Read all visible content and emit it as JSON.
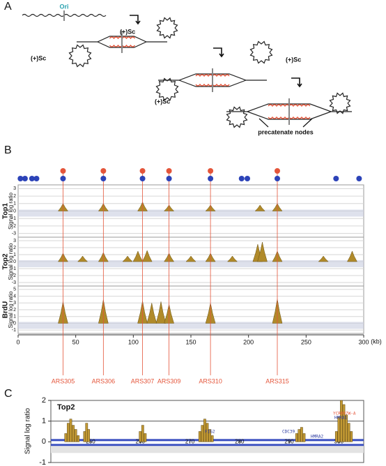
{
  "panel_a": {
    "label": "A",
    "ori": "Ori",
    "sc_labels": [
      "(+)Sc",
      "(+)Sc",
      "(+)Sc",
      "(+)Sc"
    ],
    "nodes_label": "precatenate nodes"
  },
  "panel_b": {
    "label": "B",
    "ylabel": "Signal log ratio",
    "xunit": "(kb)",
    "xlim": [
      0,
      300
    ],
    "xticks": [
      0,
      50,
      100,
      150,
      200,
      250,
      300
    ],
    "blue_dots": [
      2,
      6,
      12,
      16,
      39,
      74,
      108,
      131,
      167,
      194,
      199,
      225,
      276,
      296
    ],
    "ars": {
      "names": [
        "ARS305",
        "ARS306",
        "ARS307",
        "ARS309",
        "ARS310",
        "ARS315"
      ],
      "x": [
        39,
        74,
        108,
        131,
        167,
        225
      ]
    },
    "tracks": [
      {
        "name": "Top1",
        "ylim": [
          -3.5,
          3.5
        ],
        "yticks": [
          -3,
          -2,
          -1,
          0,
          1,
          2,
          3
        ],
        "x": [
          39,
          74,
          108,
          131,
          167,
          210,
          225
        ],
        "values": [
          1,
          1,
          1.2,
          0.8,
          0.8,
          0.8,
          1
        ]
      },
      {
        "name": "Top2",
        "ylim": [
          -3.5,
          3.5
        ],
        "yticks": [
          -3,
          -2,
          -1,
          0,
          1,
          2,
          3
        ],
        "x": [
          39,
          56,
          74,
          95,
          104,
          112,
          131,
          150,
          167,
          186,
          208,
          212,
          225,
          265,
          290
        ],
        "values": [
          1.2,
          0.8,
          1.3,
          0.8,
          1.5,
          1.6,
          1.2,
          0.8,
          1.2,
          0.8,
          2.5,
          2.8,
          1.5,
          0.8,
          1.5
        ]
      },
      {
        "name": "BrdU",
        "ylim": [
          -1.5,
          5.5
        ],
        "yticks": [
          -1,
          0,
          1,
          2,
          3,
          4,
          5
        ],
        "x": [
          39,
          74,
          108,
          116,
          124,
          131,
          167,
          225
        ],
        "values": [
          3.2,
          3.5,
          3.3,
          3,
          3.2,
          2.8,
          3,
          3.6
        ]
      }
    ]
  },
  "panel_c": {
    "label": "C",
    "title": "Top2",
    "ylabel": "Signal log ratio",
    "xlim": [
      242,
      305
    ],
    "xticks": [
      250,
      260,
      270,
      280,
      290,
      300
    ],
    "ylim": [
      -1,
      2
    ],
    "yticks": [
      -1,
      0,
      1,
      2
    ],
    "genes": [
      "FIG2",
      "CDC39",
      "HMRA1",
      "YCR097W-A",
      "HMRA2"
    ],
    "x": [
      245,
      245.5,
      246,
      246.5,
      247,
      247.5,
      248.8,
      249.2,
      249.6,
      260,
      260.5,
      261,
      272,
      272.5,
      273,
      273.5,
      274,
      274.5,
      291.5,
      292,
      292.5,
      293,
      299.5,
      300,
      300.5,
      301,
      301.5,
      302,
      302.5
    ],
    "values": [
      0.4,
      0.9,
      1.1,
      0.8,
      0.6,
      0.3,
      0.5,
      0.9,
      0.6,
      0.5,
      0.8,
      0.4,
      0.5,
      0.8,
      1.1,
      0.9,
      0.6,
      0.3,
      0.4,
      0.6,
      0.7,
      0.4,
      0.5,
      1.2,
      2.0,
      1.8,
      1.3,
      0.9,
      0.5
    ]
  }
}
